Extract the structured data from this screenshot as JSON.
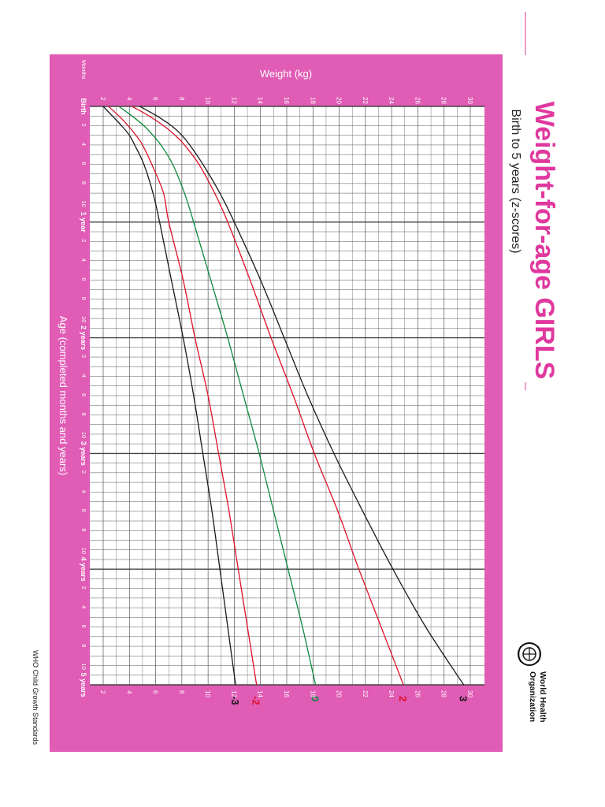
{
  "title": "Weight-for-age GIRLS",
  "subtitle": "Birth to 5 years (z-scores)",
  "footer": "WHO Child Growth Standards",
  "org": {
    "line1": "World Health",
    "line2": "Organization"
  },
  "colors": {
    "frame": "#e05cb5",
    "title": "#e0389e",
    "black": "#1a1a1a",
    "red": "#e0102a",
    "green": "#0c8a3c",
    "grid": "#555555"
  },
  "chart_data": {
    "type": "line",
    "title": "Weight-for-age GIRLS",
    "subtitle": "Birth to 5 years (z-scores)",
    "xlabel": "Age (completed months and years)",
    "ylabel": "Weight (kg)",
    "corner_label": "Months",
    "xlim": [
      0,
      60
    ],
    "ylim": [
      2,
      30
    ],
    "y_ticks": [
      2,
      4,
      6,
      8,
      10,
      12,
      14,
      16,
      18,
      20,
      22,
      24,
      26,
      28,
      30
    ],
    "month_ticks": [
      "2",
      "4",
      "6",
      "8",
      "10"
    ],
    "year_labels": [
      "Birth",
      "1 year",
      "2 years",
      "3 years",
      "4 years",
      "5 years"
    ],
    "x": [
      0,
      1,
      2,
      3,
      4,
      6,
      9,
      12,
      18,
      24,
      30,
      36,
      42,
      48,
      54,
      60
    ],
    "series": [
      {
        "name": "3",
        "color": "black",
        "values": [
          4.8,
          6.1,
          7.2,
          8.0,
          8.6,
          9.6,
          10.9,
          12.0,
          14.0,
          15.8,
          17.6,
          19.6,
          21.8,
          24.1,
          26.6,
          29.5
        ]
      },
      {
        "name": "2",
        "color": "red",
        "values": [
          4.2,
          5.5,
          6.6,
          7.5,
          8.2,
          9.3,
          10.5,
          11.5,
          13.2,
          14.8,
          16.5,
          18.1,
          19.9,
          21.5,
          23.2,
          24.9
        ]
      },
      {
        "name": "0",
        "color": "green",
        "values": [
          3.2,
          4.2,
          5.1,
          5.8,
          6.4,
          7.3,
          8.2,
          8.9,
          10.2,
          11.5,
          12.7,
          13.9,
          15.0,
          16.1,
          17.2,
          18.2
        ]
      },
      {
        "name": "-2",
        "color": "red",
        "values": [
          2.4,
          3.2,
          3.9,
          4.5,
          5.0,
          5.7,
          6.6,
          7.0,
          8.1,
          9.0,
          10.0,
          10.8,
          11.6,
          12.3,
          13.0,
          13.7
        ]
      },
      {
        "name": "-3",
        "color": "black",
        "values": [
          2.0,
          2.7,
          3.4,
          4.0,
          4.4,
          5.1,
          5.8,
          6.3,
          7.2,
          8.1,
          8.9,
          9.6,
          10.3,
          10.9,
          11.5,
          12.1
        ]
      }
    ]
  }
}
